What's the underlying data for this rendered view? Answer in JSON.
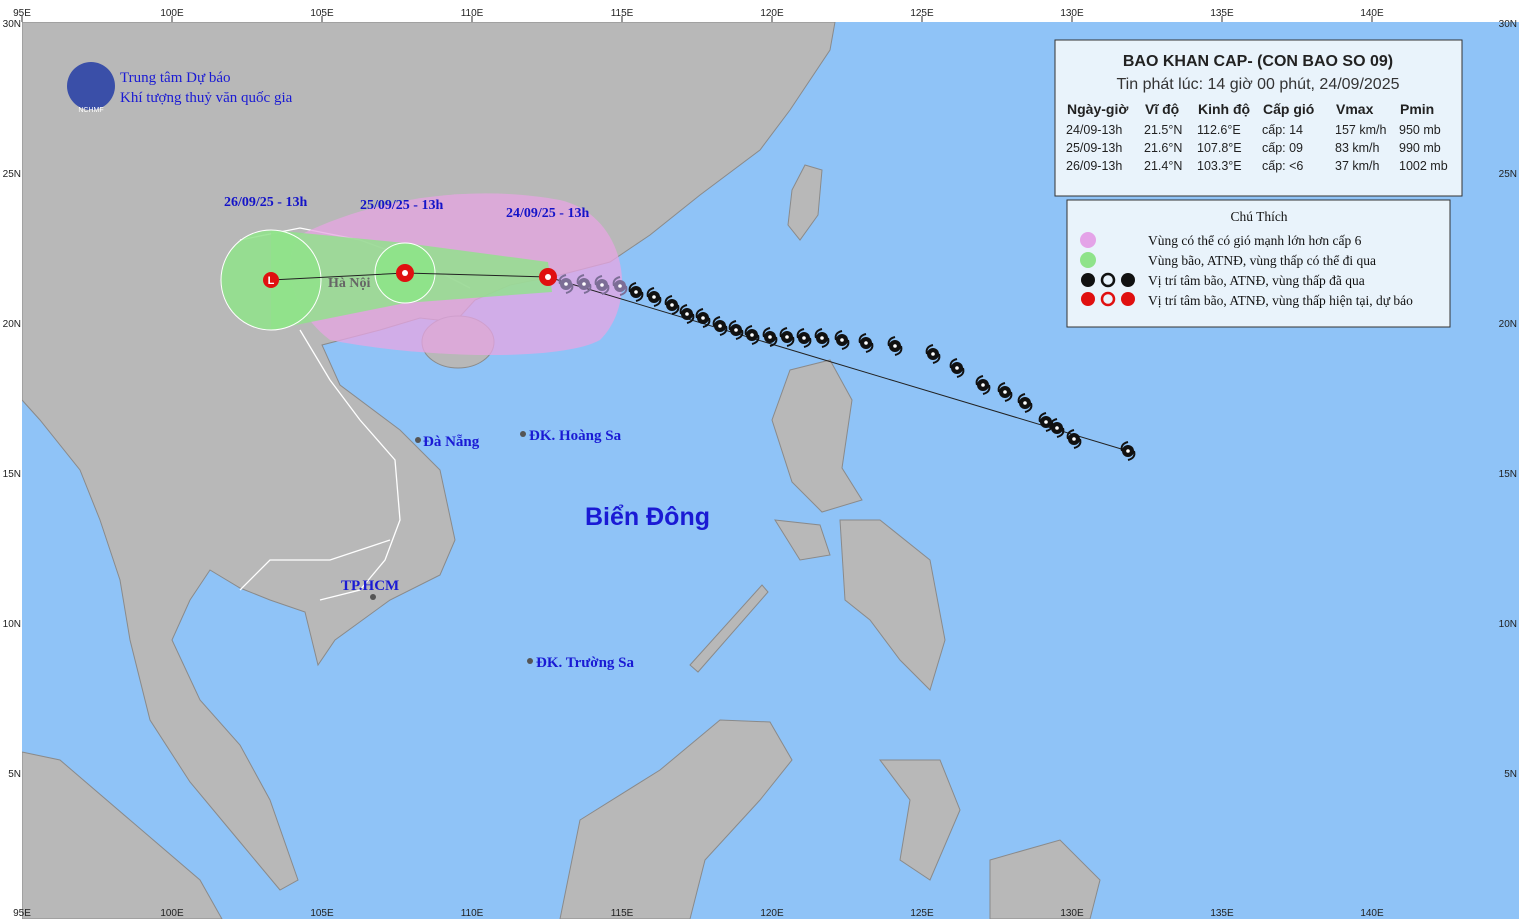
{
  "header": {
    "org_line1": "Trung tâm Dự báo",
    "org_line2": "Khí tượng thuỷ văn quốc gia",
    "logo_text": "NCHMF"
  },
  "axes": {
    "lon_labels": [
      "95E",
      "100E",
      "105E",
      "110E",
      "115E",
      "120E",
      "125E",
      "130E",
      "135E",
      "140E"
    ],
    "lat_labels": [
      "30N",
      "25N",
      "20N",
      "15N",
      "10N",
      "5N"
    ]
  },
  "forecast_labels": [
    "26/09/25 - 13h",
    "25/09/25 - 13h",
    "24/09/25 - 13h"
  ],
  "places": {
    "hanoi": "Hà Nội",
    "danang": "Đà Nẵng",
    "hoangsa": "ĐK. Hoàng Sa",
    "hcm": "TP.HCM",
    "truongsa": "ĐK. Trường Sa",
    "sea": "Biển Đông"
  },
  "bulletin": {
    "title": "BAO KHAN CAP- (CON BAO SO 09)",
    "subtitle": "Tin phát lúc: 14 giờ 00 phút, 24/09/2025",
    "columns": [
      "Ngày-giờ",
      "Vĩ độ",
      "Kinh độ",
      "Cấp gió",
      "Vmax",
      "Pmin"
    ],
    "rows": [
      [
        "24/09-13h",
        "21.5°N",
        "112.6°E",
        "cấp: 14",
        "157 km/h",
        "950 mb"
      ],
      [
        "25/09-13h",
        "21.6°N",
        "107.8°E",
        "cấp: 09",
        "83 km/h",
        "990 mb"
      ],
      [
        "26/09-13h",
        "21.4°N",
        "103.3°E",
        "cấp: <6",
        "37 km/h",
        "1002 mb"
      ]
    ]
  },
  "legend": {
    "title": "Chú Thích",
    "items": [
      "Vùng có thể có gió mạnh lớn hơn cấp 6",
      "Vùng bão, ATNĐ, vùng thấp có thể đi qua",
      "Vị trí tâm bão, ATNĐ, vùng thấp đã qua",
      "Vị trí tâm bão, ATNĐ, vùng thấp hiện tại, dự báo"
    ]
  }
}
